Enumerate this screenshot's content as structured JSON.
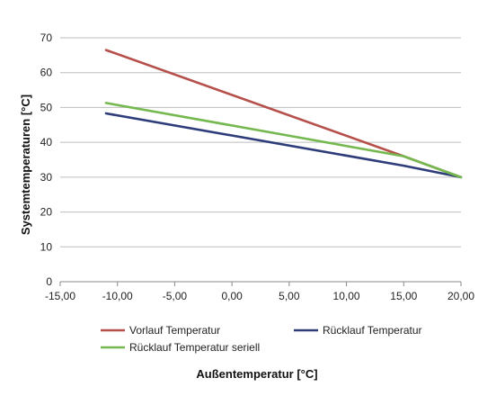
{
  "chart_data": {
    "type": "line",
    "title": "",
    "xlabel": "Außentemperatur [°C]",
    "ylabel": "Systemtemperaturen [°C]",
    "xlim": [
      -15,
      20
    ],
    "ylim": [
      0,
      70
    ],
    "xticks": [
      -15,
      -10,
      -5,
      0,
      5,
      10,
      15,
      20
    ],
    "xtick_labels": [
      "-15,00",
      "-10,00",
      "-5,00",
      "0,00",
      "5,00",
      "10,00",
      "15,00",
      "20,00"
    ],
    "yticks": [
      0,
      10,
      20,
      30,
      40,
      50,
      60,
      70
    ],
    "ytick_labels": [
      "0",
      "10",
      "20",
      "30",
      "40",
      "50",
      "60",
      "70"
    ],
    "grid": "horizontal",
    "legend_position": "bottom",
    "series": [
      {
        "name": "Vorlauf Temperatur",
        "color": "#b5504b",
        "x": [
          -11,
          15,
          20
        ],
        "y": [
          66.5,
          36,
          30
        ]
      },
      {
        "name": "Rücklauf Temperatur",
        "color": "#2e3d7a",
        "x": [
          -11,
          15,
          20
        ],
        "y": [
          48.3,
          33.3,
          30
        ]
      },
      {
        "name": "Rücklauf Temperatur seriell",
        "color": "#74b84f",
        "x": [
          -11,
          15,
          20
        ],
        "y": [
          51.3,
          36,
          30
        ]
      }
    ]
  }
}
